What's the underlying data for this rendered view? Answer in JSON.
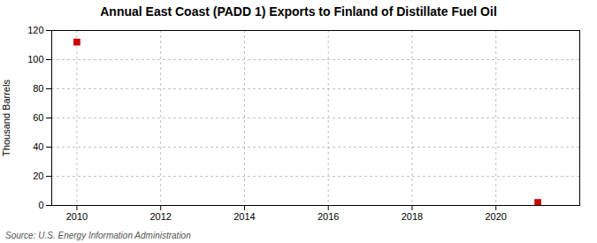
{
  "chart_data": {
    "type": "scatter",
    "title": "Annual East Coast (PADD 1) Exports to Finland of Distillate Fuel Oil",
    "ylabel": "Thousand Barrels",
    "source": "Source: U.S. Energy Information Administration",
    "x": [
      2010,
      2021
    ],
    "values": [
      112,
      2
    ],
    "color": "#cc0000",
    "marker": "square",
    "xlim": [
      2009.4,
      2022.0
    ],
    "ylim": [
      0,
      120
    ],
    "xticks": [
      2010,
      2012,
      2014,
      2016,
      2018,
      2020
    ],
    "yticks": [
      0,
      20,
      40,
      60,
      80,
      100,
      120
    ],
    "grid": true
  }
}
